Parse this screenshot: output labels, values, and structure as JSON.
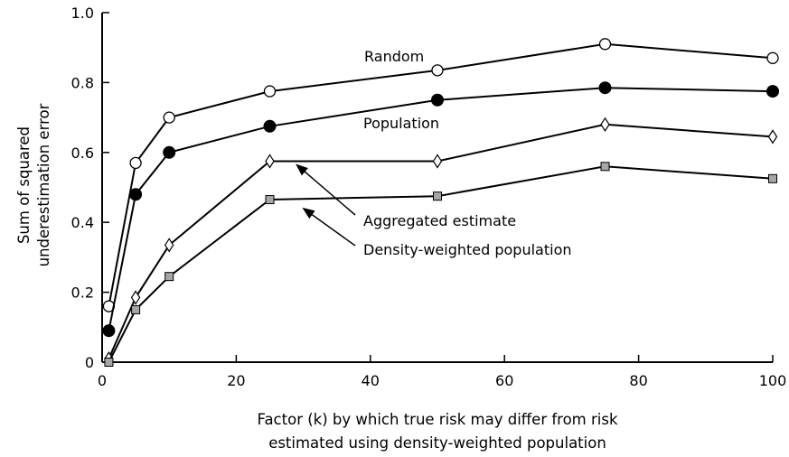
{
  "chart_data": {
    "type": "line",
    "title": "",
    "xlabel": [
      "Factor (k) by which true risk may differ from risk",
      "estimated using density-weighted population"
    ],
    "ylabel": [
      "Sum of squared",
      "underestimation error"
    ],
    "xlim": [
      0,
      100
    ],
    "ylim": [
      0,
      1.0
    ],
    "xticks": [
      0,
      20,
      40,
      60,
      80,
      100
    ],
    "yticks": [
      0,
      0.2,
      0.4,
      0.6,
      0.8,
      1.0
    ],
    "xtick_labels": [
      "0",
      "20",
      "40",
      "60",
      "80",
      "100"
    ],
    "ytick_labels": [
      "0",
      "0.2",
      "0.4",
      "0.6",
      "0.8",
      "1.0"
    ],
    "grid": false,
    "series": [
      {
        "name": "Random",
        "marker": "open-circle",
        "x": [
          1,
          5,
          10,
          25,
          50,
          75,
          100
        ],
        "y": [
          0.16,
          0.57,
          0.7,
          0.775,
          0.835,
          0.91,
          0.87
        ]
      },
      {
        "name": "Population",
        "marker": "filled-circle",
        "x": [
          1,
          5,
          10,
          25,
          50,
          75,
          100
        ],
        "y": [
          0.09,
          0.48,
          0.6,
          0.675,
          0.75,
          0.785,
          0.775
        ]
      },
      {
        "name": "Aggregated estimate",
        "marker": "open-diamond",
        "x": [
          1,
          5,
          10,
          25,
          50,
          75,
          100
        ],
        "y": [
          0.01,
          0.185,
          0.335,
          0.575,
          0.575,
          0.68,
          0.645
        ]
      },
      {
        "name": "Density-weighted population",
        "marker": "gray-square",
        "x": [
          1,
          5,
          10,
          25,
          50,
          75,
          100
        ],
        "y": [
          0.0,
          0.15,
          0.245,
          0.465,
          0.475,
          0.56,
          0.525
        ]
      }
    ],
    "annotations": [
      {
        "text": "Random",
        "series": 0
      },
      {
        "text": "Population",
        "series": 1
      },
      {
        "text": "Aggregated estimate",
        "series": 2,
        "arrow": true,
        "arrow_to": {
          "x": 29,
          "y": 0.565
        }
      },
      {
        "text": "Density-weighted population",
        "series": 3,
        "arrow": true,
        "arrow_to": {
          "x": 30,
          "y": 0.44
        }
      }
    ],
    "colors": {
      "line": "#000000",
      "square_fill": "#a6a6a6",
      "open_fill": "#ffffff",
      "filled": "#000000"
    }
  }
}
